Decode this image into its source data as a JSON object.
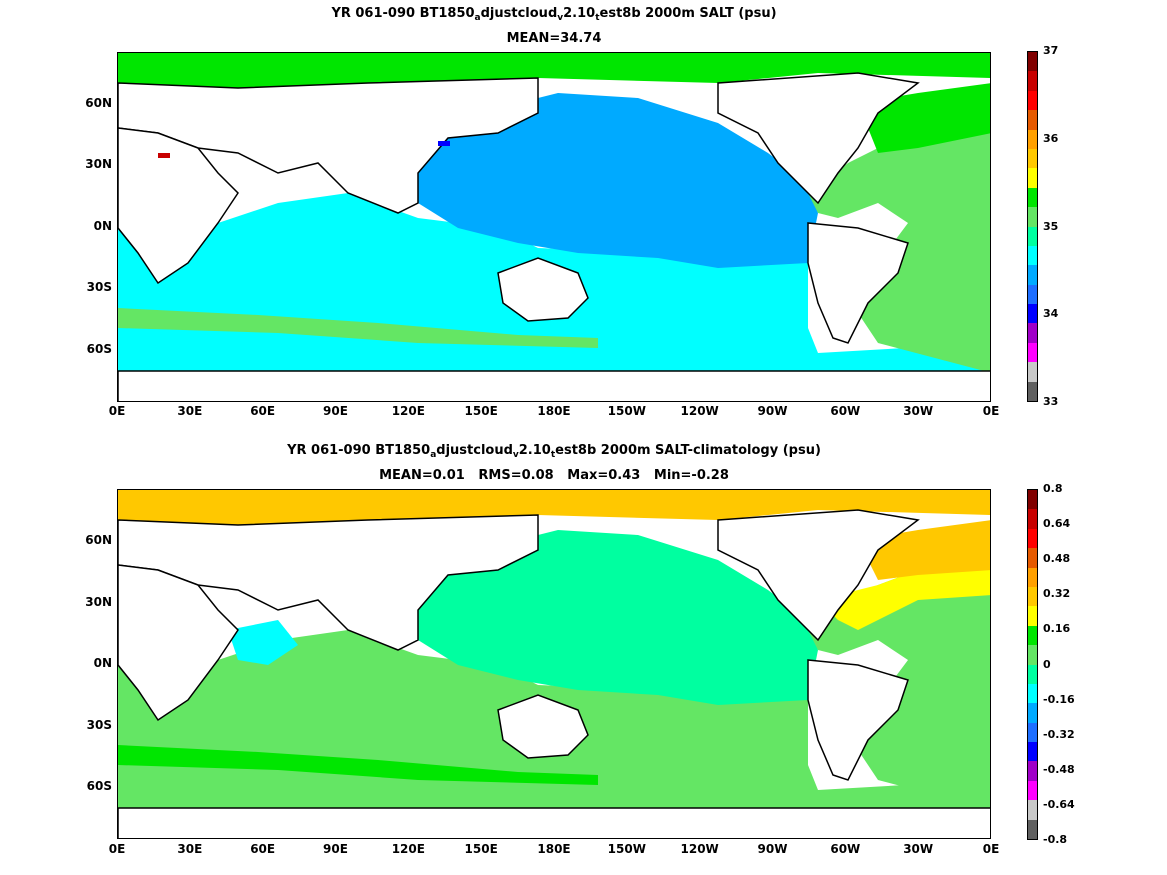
{
  "chart_data": [
    {
      "type": "heatmap",
      "title_parts": [
        "YR 061-090 BT1850",
        "a",
        "djustcloud",
        "v",
        "2.10",
        "t",
        "est8b 2000m SALT (psu)"
      ],
      "subtitle": "MEAN=34.74",
      "x_tick_labels": [
        "0E",
        "30E",
        "60E",
        "90E",
        "120E",
        "150E",
        "180E",
        "150W",
        "120W",
        "90W",
        "60W",
        "30W",
        "0E"
      ],
      "y_tick_labels": [
        "60N",
        "30N",
        "0N",
        "30S",
        "60S"
      ],
      "colorbar": {
        "labels": [
          "37",
          "36",
          "35",
          "34",
          "33"
        ],
        "range": [
          33,
          37
        ],
        "colors": [
          "#606060",
          "#c8c8c8",
          "#ff00ff",
          "#a000c8",
          "#0000ff",
          "#1e6eff",
          "#00aaff",
          "#00ffff",
          "#00ffa0",
          "#64e664",
          "#00e600",
          "#ffff00",
          "#ffc800",
          "#ffa000",
          "#e65a00",
          "#ff0000",
          "#c80000",
          "#800000"
        ]
      },
      "regions": [
        {
          "name": "Pacific",
          "value": 34.6,
          "color": "#00aaff"
        },
        {
          "name": "Indian and Southern Ocean",
          "value": 34.7,
          "color": "#00ffff"
        },
        {
          "name": "Atlantic",
          "value": 34.95,
          "color": "#64e664"
        },
        {
          "name": "Arctic and Nordic Seas",
          "value": 35.0,
          "color": "#00e600"
        },
        {
          "name": "Mediterranean",
          "value": 36.8,
          "color": "#c80000"
        }
      ]
    },
    {
      "type": "heatmap",
      "title_parts": [
        "YR 061-090 BT1850",
        "a",
        "djustcloud",
        "v",
        "2.10",
        "t",
        "est8b 2000m SALT-climatology (psu)"
      ],
      "subtitle": "MEAN=0.01   RMS=0.08   Max=0.43   Min=-0.28",
      "x_tick_labels": [
        "0E",
        "30E",
        "60E",
        "90E",
        "120E",
        "150E",
        "180E",
        "150W",
        "120W",
        "90W",
        "60W",
        "30W",
        "0E"
      ],
      "y_tick_labels": [
        "60N",
        "30N",
        "0N",
        "30S",
        "60S"
      ],
      "colorbar": {
        "labels": [
          "0.8",
          "0.64",
          "0.48",
          "0.32",
          "0.16",
          "0",
          "-0.16",
          "-0.32",
          "-0.48",
          "-0.64",
          "-0.8"
        ],
        "range": [
          -0.8,
          0.8
        ],
        "colors": [
          "#606060",
          "#c8c8c8",
          "#ff00ff",
          "#a000c8",
          "#0000ff",
          "#1e6eff",
          "#00aaff",
          "#00ffff",
          "#00ffa0",
          "#64e664",
          "#00e600",
          "#ffff00",
          "#ffc800",
          "#ffa000",
          "#e65a00",
          "#ff0000",
          "#c80000",
          "#800000"
        ]
      },
      "regions": [
        {
          "name": "Pacific",
          "value": 0.0,
          "color": "#00ffa0"
        },
        {
          "name": "Southern Ocean",
          "value": 0.05,
          "color": "#64e664"
        },
        {
          "name": "Arctic",
          "value": 0.3,
          "color": "#ffc800"
        },
        {
          "name": "North Atlantic",
          "value": 0.25,
          "color": "#ffff00"
        },
        {
          "name": "Arabian Sea",
          "value": -0.1,
          "color": "#00ffff"
        }
      ]
    }
  ]
}
